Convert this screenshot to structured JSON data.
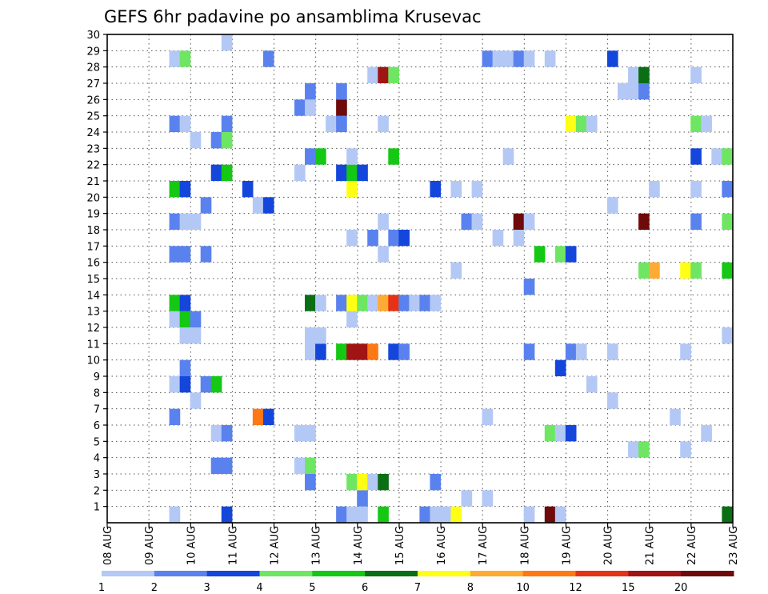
{
  "chart_data": {
    "type": "heatmap",
    "title": "GEFS 6hr padavine po ansamblima Krusevac",
    "x_tick_labels": [
      "08 AUG",
      "09 AUG",
      "10 AUG",
      "11 AUG",
      "12 AUG",
      "13 AUG",
      "14 AUG",
      "15 AUG",
      "16 AUG",
      "17 AUG",
      "18 AUG",
      "19 AUG",
      "20 AUG",
      "21 AUG",
      "22 AUG",
      "23 AUG"
    ],
    "y_tick_labels": [
      "1",
      "2",
      "3",
      "4",
      "5",
      "6",
      "7",
      "8",
      "9",
      "10",
      "11",
      "12",
      "13",
      "14",
      "15",
      "16",
      "17",
      "18",
      "19",
      "20",
      "21",
      "22",
      "23",
      "24",
      "25",
      "26",
      "27",
      "28",
      "29",
      "30"
    ],
    "ylim": [
      0,
      30
    ],
    "x_steps_per_day": 4,
    "x_range_steps": [
      0,
      60
    ],
    "grid": true,
    "legend": {
      "placement": "bottom",
      "labels": [
        "1",
        "2",
        "3",
        "4",
        "5",
        "6",
        "7",
        "8",
        "10",
        "12",
        "15",
        "20"
      ],
      "colors": [
        "#b4c8f5",
        "#5a82ee",
        "#1446dc",
        "#6ee664",
        "#14c814",
        "#0a6e14",
        "#ffff14",
        "#ffaa32",
        "#ff7814",
        "#e63214",
        "#a01414",
        "#6e0a0a"
      ]
    },
    "cells": [
      {
        "x": 6,
        "y": 0,
        "v": 1
      },
      {
        "x": 11,
        "y": 0,
        "v": 3
      },
      {
        "x": 22,
        "y": 0,
        "v": 2
      },
      {
        "x": 23,
        "y": 0,
        "v": 1
      },
      {
        "x": 24,
        "y": 0,
        "v": 1
      },
      {
        "x": 26,
        "y": 0,
        "v": 5
      },
      {
        "x": 30,
        "y": 0,
        "v": 2
      },
      {
        "x": 31,
        "y": 0,
        "v": 1
      },
      {
        "x": 32,
        "y": 0,
        "v": 1
      },
      {
        "x": 33,
        "y": 0,
        "v": 7
      },
      {
        "x": 40,
        "y": 0,
        "v": 1
      },
      {
        "x": 42,
        "y": 0,
        "v": 20
      },
      {
        "x": 43,
        "y": 0,
        "v": 1
      },
      {
        "x": 59,
        "y": 0,
        "v": 6
      },
      {
        "x": 24,
        "y": 1,
        "v": 2
      },
      {
        "x": 34,
        "y": 1,
        "v": 1
      },
      {
        "x": 36,
        "y": 1,
        "v": 1
      },
      {
        "x": 19,
        "y": 2,
        "v": 2
      },
      {
        "x": 23,
        "y": 2,
        "v": 4
      },
      {
        "x": 24,
        "y": 2,
        "v": 7
      },
      {
        "x": 25,
        "y": 2,
        "v": 1
      },
      {
        "x": 26,
        "y": 2,
        "v": 6
      },
      {
        "x": 31,
        "y": 2,
        "v": 2
      },
      {
        "x": 10,
        "y": 3,
        "v": 2
      },
      {
        "x": 11,
        "y": 3,
        "v": 2
      },
      {
        "x": 18,
        "y": 3,
        "v": 1
      },
      {
        "x": 19,
        "y": 3,
        "v": 4
      },
      {
        "x": 50,
        "y": 4,
        "v": 1
      },
      {
        "x": 51,
        "y": 4,
        "v": 4
      },
      {
        "x": 55,
        "y": 4,
        "v": 1
      },
      {
        "x": 10,
        "y": 5,
        "v": 1
      },
      {
        "x": 11,
        "y": 5,
        "v": 2
      },
      {
        "x": 18,
        "y": 5,
        "v": 1
      },
      {
        "x": 19,
        "y": 5,
        "v": 1
      },
      {
        "x": 42,
        "y": 5,
        "v": 4
      },
      {
        "x": 43,
        "y": 5,
        "v": 1
      },
      {
        "x": 44,
        "y": 5,
        "v": 3
      },
      {
        "x": 57,
        "y": 5,
        "v": 1
      },
      {
        "x": 6,
        "y": 6,
        "v": 2
      },
      {
        "x": 14,
        "y": 6,
        "v": 10
      },
      {
        "x": 15,
        "y": 6,
        "v": 3
      },
      {
        "x": 36,
        "y": 6,
        "v": 1
      },
      {
        "x": 54,
        "y": 6,
        "v": 1
      },
      {
        "x": 8,
        "y": 7,
        "v": 1
      },
      {
        "x": 48,
        "y": 7,
        "v": 1
      },
      {
        "x": 6,
        "y": 8,
        "v": 1
      },
      {
        "x": 7,
        "y": 8,
        "v": 3
      },
      {
        "x": 9,
        "y": 8,
        "v": 2
      },
      {
        "x": 10,
        "y": 8,
        "v": 5
      },
      {
        "x": 46,
        "y": 8,
        "v": 1
      },
      {
        "x": 7,
        "y": 9,
        "v": 2
      },
      {
        "x": 43,
        "y": 9,
        "v": 3
      },
      {
        "x": 19,
        "y": 10,
        "v": 1
      },
      {
        "x": 20,
        "y": 10,
        "v": 3
      },
      {
        "x": 22,
        "y": 10,
        "v": 5
      },
      {
        "x": 23,
        "y": 10,
        "v": 15
      },
      {
        "x": 24,
        "y": 10,
        "v": 15
      },
      {
        "x": 25,
        "y": 10,
        "v": 10
      },
      {
        "x": 27,
        "y": 10,
        "v": 3
      },
      {
        "x": 28,
        "y": 10,
        "v": 2
      },
      {
        "x": 40,
        "y": 10,
        "v": 2
      },
      {
        "x": 44,
        "y": 10,
        "v": 2
      },
      {
        "x": 45,
        "y": 10,
        "v": 1
      },
      {
        "x": 48,
        "y": 10,
        "v": 1
      },
      {
        "x": 55,
        "y": 10,
        "v": 1
      },
      {
        "x": 7,
        "y": 11,
        "v": 1
      },
      {
        "x": 8,
        "y": 11,
        "v": 1
      },
      {
        "x": 19,
        "y": 11,
        "v": 1
      },
      {
        "x": 20,
        "y": 11,
        "v": 1
      },
      {
        "x": 59,
        "y": 11,
        "v": 1
      },
      {
        "x": 6,
        "y": 12,
        "v": 1
      },
      {
        "x": 7,
        "y": 12,
        "v": 5
      },
      {
        "x": 8,
        "y": 12,
        "v": 2
      },
      {
        "x": 23,
        "y": 12,
        "v": 1
      },
      {
        "x": 6,
        "y": 13,
        "v": 5
      },
      {
        "x": 7,
        "y": 13,
        "v": 3
      },
      {
        "x": 19,
        "y": 13,
        "v": 6
      },
      {
        "x": 20,
        "y": 13,
        "v": 1
      },
      {
        "x": 22,
        "y": 13,
        "v": 2
      },
      {
        "x": 23,
        "y": 13,
        "v": 7
      },
      {
        "x": 24,
        "y": 13,
        "v": 4
      },
      {
        "x": 25,
        "y": 13,
        "v": 1
      },
      {
        "x": 26,
        "y": 13,
        "v": 8
      },
      {
        "x": 27,
        "y": 13,
        "v": 12
      },
      {
        "x": 28,
        "y": 13,
        "v": 2
      },
      {
        "x": 29,
        "y": 13,
        "v": 1
      },
      {
        "x": 30,
        "y": 13,
        "v": 2
      },
      {
        "x": 31,
        "y": 13,
        "v": 1
      },
      {
        "x": 40,
        "y": 14,
        "v": 2
      },
      {
        "x": 33,
        "y": 15,
        "v": 1
      },
      {
        "x": 51,
        "y": 15,
        "v": 4
      },
      {
        "x": 52,
        "y": 15,
        "v": 8
      },
      {
        "x": 55,
        "y": 15,
        "v": 7
      },
      {
        "x": 56,
        "y": 15,
        "v": 4
      },
      {
        "x": 59,
        "y": 15,
        "v": 5
      },
      {
        "x": 6,
        "y": 16,
        "v": 2
      },
      {
        "x": 7,
        "y": 16,
        "v": 2
      },
      {
        "x": 9,
        "y": 16,
        "v": 2
      },
      {
        "x": 26,
        "y": 16,
        "v": 1
      },
      {
        "x": 41,
        "y": 16,
        "v": 5
      },
      {
        "x": 43,
        "y": 16,
        "v": 4
      },
      {
        "x": 44,
        "y": 16,
        "v": 3
      },
      {
        "x": 23,
        "y": 17,
        "v": 1
      },
      {
        "x": 25,
        "y": 17,
        "v": 2
      },
      {
        "x": 27,
        "y": 17,
        "v": 2
      },
      {
        "x": 28,
        "y": 17,
        "v": 3
      },
      {
        "x": 37,
        "y": 17,
        "v": 1
      },
      {
        "x": 39,
        "y": 17,
        "v": 1
      },
      {
        "x": 6,
        "y": 18,
        "v": 2
      },
      {
        "x": 7,
        "y": 18,
        "v": 1
      },
      {
        "x": 8,
        "y": 18,
        "v": 1
      },
      {
        "x": 26,
        "y": 18,
        "v": 1
      },
      {
        "x": 34,
        "y": 18,
        "v": 2
      },
      {
        "x": 35,
        "y": 18,
        "v": 1
      },
      {
        "x": 39,
        "y": 18,
        "v": 20
      },
      {
        "x": 40,
        "y": 18,
        "v": 1
      },
      {
        "x": 51,
        "y": 18,
        "v": 20
      },
      {
        "x": 56,
        "y": 18,
        "v": 2
      },
      {
        "x": 59,
        "y": 18,
        "v": 4
      },
      {
        "x": 9,
        "y": 19,
        "v": 2
      },
      {
        "x": 14,
        "y": 19,
        "v": 1
      },
      {
        "x": 15,
        "y": 19,
        "v": 3
      },
      {
        "x": 48,
        "y": 19,
        "v": 1
      },
      {
        "x": 6,
        "y": 20,
        "v": 5
      },
      {
        "x": 7,
        "y": 20,
        "v": 3
      },
      {
        "x": 13,
        "y": 20,
        "v": 3
      },
      {
        "x": 23,
        "y": 20,
        "v": 7
      },
      {
        "x": 31,
        "y": 20,
        "v": 3
      },
      {
        "x": 33,
        "y": 20,
        "v": 1
      },
      {
        "x": 35,
        "y": 20,
        "v": 1
      },
      {
        "x": 52,
        "y": 20,
        "v": 1
      },
      {
        "x": 56,
        "y": 20,
        "v": 1
      },
      {
        "x": 59,
        "y": 20,
        "v": 2
      },
      {
        "x": 10,
        "y": 21,
        "v": 3
      },
      {
        "x": 11,
        "y": 21,
        "v": 5
      },
      {
        "x": 18,
        "y": 21,
        "v": 1
      },
      {
        "x": 22,
        "y": 21,
        "v": 3
      },
      {
        "x": 23,
        "y": 21,
        "v": 5
      },
      {
        "x": 24,
        "y": 21,
        "v": 3
      },
      {
        "x": 19,
        "y": 22,
        "v": 2
      },
      {
        "x": 20,
        "y": 22,
        "v": 5
      },
      {
        "x": 23,
        "y": 22,
        "v": 1
      },
      {
        "x": 27,
        "y": 22,
        "v": 5
      },
      {
        "x": 38,
        "y": 22,
        "v": 1
      },
      {
        "x": 56,
        "y": 22,
        "v": 3
      },
      {
        "x": 58,
        "y": 22,
        "v": 1
      },
      {
        "x": 59,
        "y": 22,
        "v": 4
      },
      {
        "x": 8,
        "y": 23,
        "v": 1
      },
      {
        "x": 10,
        "y": 23,
        "v": 2
      },
      {
        "x": 11,
        "y": 23,
        "v": 4
      },
      {
        "x": 6,
        "y": 24,
        "v": 2
      },
      {
        "x": 7,
        "y": 24,
        "v": 1
      },
      {
        "x": 11,
        "y": 24,
        "v": 2
      },
      {
        "x": 21,
        "y": 24,
        "v": 1
      },
      {
        "x": 22,
        "y": 24,
        "v": 2
      },
      {
        "x": 26,
        "y": 24,
        "v": 1
      },
      {
        "x": 44,
        "y": 24,
        "v": 7
      },
      {
        "x": 45,
        "y": 24,
        "v": 4
      },
      {
        "x": 46,
        "y": 24,
        "v": 1
      },
      {
        "x": 56,
        "y": 24,
        "v": 4
      },
      {
        "x": 57,
        "y": 24,
        "v": 1
      },
      {
        "x": 18,
        "y": 25,
        "v": 2
      },
      {
        "x": 19,
        "y": 25,
        "v": 1
      },
      {
        "x": 22,
        "y": 25,
        "v": 20
      },
      {
        "x": 19,
        "y": 26,
        "v": 2
      },
      {
        "x": 22,
        "y": 26,
        "v": 2
      },
      {
        "x": 49,
        "y": 26,
        "v": 1
      },
      {
        "x": 50,
        "y": 26,
        "v": 1
      },
      {
        "x": 51,
        "y": 26,
        "v": 2
      },
      {
        "x": 25,
        "y": 27,
        "v": 1
      },
      {
        "x": 26,
        "y": 27,
        "v": 15
      },
      {
        "x": 27,
        "y": 27,
        "v": 4
      },
      {
        "x": 50,
        "y": 27,
        "v": 1
      },
      {
        "x": 51,
        "y": 27,
        "v": 6
      },
      {
        "x": 56,
        "y": 27,
        "v": 1
      },
      {
        "x": 6,
        "y": 28,
        "v": 1
      },
      {
        "x": 7,
        "y": 28,
        "v": 4
      },
      {
        "x": 15,
        "y": 28,
        "v": 2
      },
      {
        "x": 36,
        "y": 28,
        "v": 2
      },
      {
        "x": 37,
        "y": 28,
        "v": 1
      },
      {
        "x": 38,
        "y": 28,
        "v": 1
      },
      {
        "x": 39,
        "y": 28,
        "v": 2
      },
      {
        "x": 40,
        "y": 28,
        "v": 1
      },
      {
        "x": 42,
        "y": 28,
        "v": 1
      },
      {
        "x": 48,
        "y": 28,
        "v": 3
      },
      {
        "x": 11,
        "y": 29,
        "v": 1
      }
    ]
  }
}
